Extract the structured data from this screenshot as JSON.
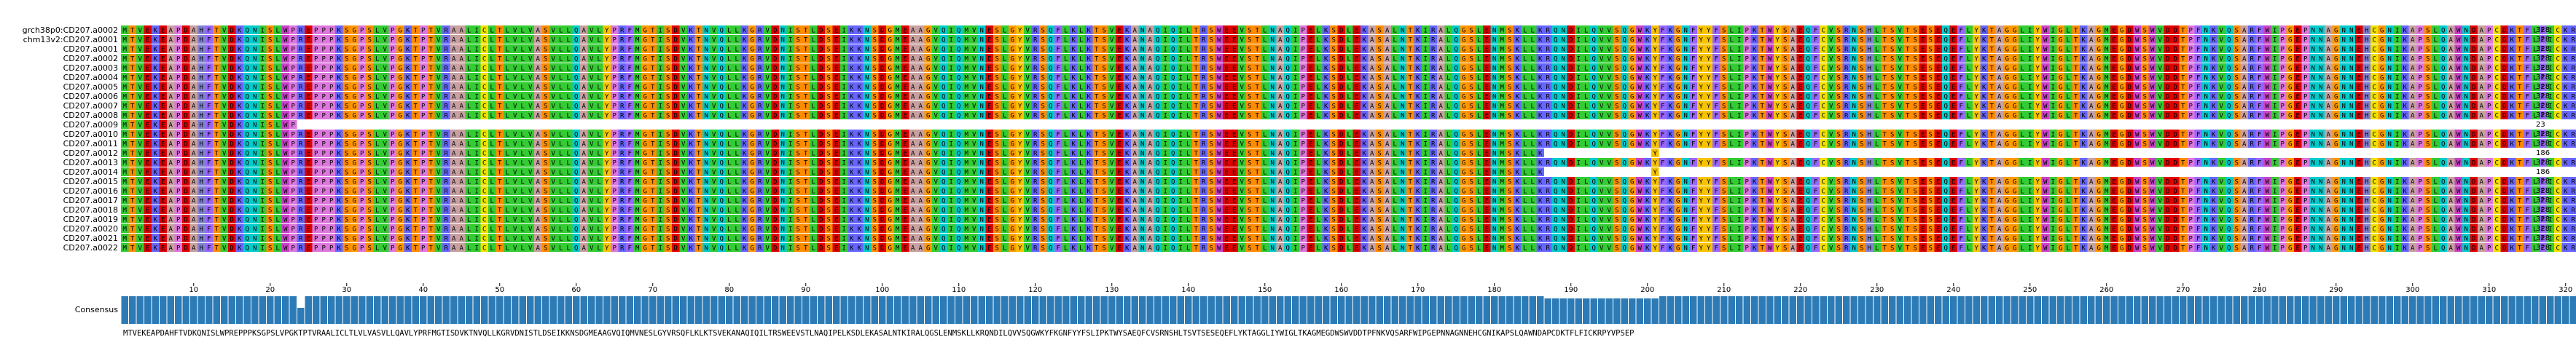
{
  "alignment": {
    "ruler_ticks": [
      "10",
      "20",
      "30",
      "40",
      "50",
      "60",
      "70",
      "80",
      "90",
      "100",
      "110",
      "120",
      "130",
      "140",
      "150",
      "160",
      "170",
      "180",
      "190",
      "200",
      "210",
      "220",
      "230",
      "240",
      "250",
      "260",
      "270",
      "280",
      "290",
      "300",
      "310",
      "320"
    ],
    "consensus_label": "Consensus",
    "consensus_sequence": "MTVEKEAPDAHFTVDKQNISLWPREPPPKSGPSLVPGKTPTVRAALICLTLVLVASVLLQAVLYPRFMGTISDVKTNVQLLKGRVDNISTLDSEIKKNSDGMEAAGVQIQMVNESLGYVRSQFLKLKTSVEKANAQIQILTRSWEEVSTLNAQIPELKSDLEKASALNTKIRALQGSLENMSKLLKRQNDILQVVSQGWKYFKGNFYYFSLIPKTWYSAEQFCVSRNSHLTSVTSESEQEFLYKTAGGLIYWIGLTKAGMEGDWSWVDDTPFNKVQSARFWIPGEPNNAGNNEHCGNIKAPSLQAWNDAPCDKTFLFICKRPYVPSEP",
    "sequences": [
      {
        "name": "grch38p0:CD207.a0002",
        "length": "328",
        "gaps": []
      },
      {
        "name": "chm13v2:CD207.a0001",
        "length": "328",
        "gaps": []
      },
      {
        "name": "CD207.a0001",
        "length": "328",
        "gaps": []
      },
      {
        "name": "CD207.a0002",
        "length": "328",
        "gaps": []
      },
      {
        "name": "CD207.a0003",
        "length": "328",
        "gaps": []
      },
      {
        "name": "CD207.a0004",
        "length": "328",
        "gaps": []
      },
      {
        "name": "CD207.a0005",
        "length": "328",
        "gaps": []
      },
      {
        "name": "CD207.a0006",
        "length": "328",
        "gaps": []
      },
      {
        "name": "CD207.a0007",
        "length": "328",
        "gaps": []
      },
      {
        "name": "CD207.a0008",
        "length": "328",
        "gaps": []
      },
      {
        "name": "CD207.a0009",
        "length": "23",
        "gaps": [
          [
            23,
            328
          ]
        ]
      },
      {
        "name": "CD207.a0010",
        "length": "328",
        "gaps": []
      },
      {
        "name": "CD207.a0011",
        "length": "328",
        "gaps": []
      },
      {
        "name": "CD207.a0012",
        "length": "186",
        "gaps": [
          [
            186,
            200
          ],
          [
            201,
            328
          ]
        ]
      },
      {
        "name": "CD207.a0013",
        "length": "328",
        "gaps": []
      },
      {
        "name": "CD207.a0014",
        "length": "186",
        "gaps": [
          [
            186,
            200
          ],
          [
            201,
            328
          ]
        ]
      },
      {
        "name": "CD207.a0015",
        "length": "328",
        "gaps": []
      },
      {
        "name": "CD207.a0016",
        "length": "328",
        "gaps": []
      },
      {
        "name": "CD207.a0017",
        "length": "328",
        "gaps": []
      },
      {
        "name": "CD207.a0018",
        "length": "328",
        "gaps": []
      },
      {
        "name": "CD207.a0019",
        "length": "328",
        "gaps": []
      },
      {
        "name": "CD207.a0020",
        "length": "328",
        "gaps": []
      },
      {
        "name": "CD207.a0021",
        "length": "328",
        "gaps": []
      },
      {
        "name": "CD207.a0022",
        "length": "328",
        "gaps": []
      }
    ],
    "consensus_dips": [
      {
        "start": 23,
        "end": 24,
        "level": 0.58
      },
      {
        "start": 186,
        "end": 201,
        "level": 0.92
      }
    ],
    "residue_colors": {
      "A": "#c8a0a0",
      "C": "#f0e000",
      "D": "#e00000",
      "E": "#e00000",
      "F": "#9966ff",
      "G": "#ff9900",
      "H": "#8282d2",
      "I": "#33cc33",
      "K": "#6666ff",
      "L": "#33cc33",
      "M": "#33cc33",
      "N": "#00cccc",
      "P": "#dd77dd",
      "Q": "#00cccc",
      "R": "#6666ff",
      "S": "#ff8c00",
      "T": "#ff8c00",
      "V": "#33cc33",
      "W": "#c842c8",
      "Y": "#f7c300"
    },
    "consensus_bar_color": "#2c7bb6"
  }
}
